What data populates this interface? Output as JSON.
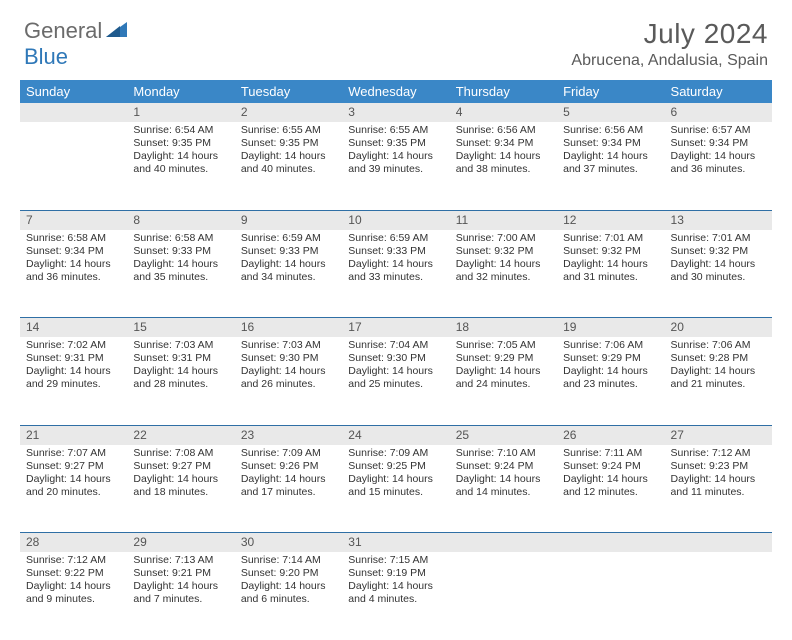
{
  "brand": {
    "general": "General",
    "blue": "Blue"
  },
  "title": "July 2024",
  "location": "Abrucena, Andalusia, Spain",
  "header_bg": "#3a87c7",
  "row_divider": "#2f6fa5",
  "daynum_bg": "#e9e9e9",
  "text_color": "#333333",
  "day_headers": [
    "Sunday",
    "Monday",
    "Tuesday",
    "Wednesday",
    "Thursday",
    "Friday",
    "Saturday"
  ],
  "weeks": [
    {
      "nums": [
        "",
        "1",
        "2",
        "3",
        "4",
        "5",
        "6"
      ],
      "cells": [
        null,
        {
          "sr": "Sunrise: 6:54 AM",
          "ss": "Sunset: 9:35 PM",
          "dl": "Daylight: 14 hours and 40 minutes."
        },
        {
          "sr": "Sunrise: 6:55 AM",
          "ss": "Sunset: 9:35 PM",
          "dl": "Daylight: 14 hours and 40 minutes."
        },
        {
          "sr": "Sunrise: 6:55 AM",
          "ss": "Sunset: 9:35 PM",
          "dl": "Daylight: 14 hours and 39 minutes."
        },
        {
          "sr": "Sunrise: 6:56 AM",
          "ss": "Sunset: 9:34 PM",
          "dl": "Daylight: 14 hours and 38 minutes."
        },
        {
          "sr": "Sunrise: 6:56 AM",
          "ss": "Sunset: 9:34 PM",
          "dl": "Daylight: 14 hours and 37 minutes."
        },
        {
          "sr": "Sunrise: 6:57 AM",
          "ss": "Sunset: 9:34 PM",
          "dl": "Daylight: 14 hours and 36 minutes."
        }
      ]
    },
    {
      "nums": [
        "7",
        "8",
        "9",
        "10",
        "11",
        "12",
        "13"
      ],
      "cells": [
        {
          "sr": "Sunrise: 6:58 AM",
          "ss": "Sunset: 9:34 PM",
          "dl": "Daylight: 14 hours and 36 minutes."
        },
        {
          "sr": "Sunrise: 6:58 AM",
          "ss": "Sunset: 9:33 PM",
          "dl": "Daylight: 14 hours and 35 minutes."
        },
        {
          "sr": "Sunrise: 6:59 AM",
          "ss": "Sunset: 9:33 PM",
          "dl": "Daylight: 14 hours and 34 minutes."
        },
        {
          "sr": "Sunrise: 6:59 AM",
          "ss": "Sunset: 9:33 PM",
          "dl": "Daylight: 14 hours and 33 minutes."
        },
        {
          "sr": "Sunrise: 7:00 AM",
          "ss": "Sunset: 9:32 PM",
          "dl": "Daylight: 14 hours and 32 minutes."
        },
        {
          "sr": "Sunrise: 7:01 AM",
          "ss": "Sunset: 9:32 PM",
          "dl": "Daylight: 14 hours and 31 minutes."
        },
        {
          "sr": "Sunrise: 7:01 AM",
          "ss": "Sunset: 9:32 PM",
          "dl": "Daylight: 14 hours and 30 minutes."
        }
      ]
    },
    {
      "nums": [
        "14",
        "15",
        "16",
        "17",
        "18",
        "19",
        "20"
      ],
      "cells": [
        {
          "sr": "Sunrise: 7:02 AM",
          "ss": "Sunset: 9:31 PM",
          "dl": "Daylight: 14 hours and 29 minutes."
        },
        {
          "sr": "Sunrise: 7:03 AM",
          "ss": "Sunset: 9:31 PM",
          "dl": "Daylight: 14 hours and 28 minutes."
        },
        {
          "sr": "Sunrise: 7:03 AM",
          "ss": "Sunset: 9:30 PM",
          "dl": "Daylight: 14 hours and 26 minutes."
        },
        {
          "sr": "Sunrise: 7:04 AM",
          "ss": "Sunset: 9:30 PM",
          "dl": "Daylight: 14 hours and 25 minutes."
        },
        {
          "sr": "Sunrise: 7:05 AM",
          "ss": "Sunset: 9:29 PM",
          "dl": "Daylight: 14 hours and 24 minutes."
        },
        {
          "sr": "Sunrise: 7:06 AM",
          "ss": "Sunset: 9:29 PM",
          "dl": "Daylight: 14 hours and 23 minutes."
        },
        {
          "sr": "Sunrise: 7:06 AM",
          "ss": "Sunset: 9:28 PM",
          "dl": "Daylight: 14 hours and 21 minutes."
        }
      ]
    },
    {
      "nums": [
        "21",
        "22",
        "23",
        "24",
        "25",
        "26",
        "27"
      ],
      "cells": [
        {
          "sr": "Sunrise: 7:07 AM",
          "ss": "Sunset: 9:27 PM",
          "dl": "Daylight: 14 hours and 20 minutes."
        },
        {
          "sr": "Sunrise: 7:08 AM",
          "ss": "Sunset: 9:27 PM",
          "dl": "Daylight: 14 hours and 18 minutes."
        },
        {
          "sr": "Sunrise: 7:09 AM",
          "ss": "Sunset: 9:26 PM",
          "dl": "Daylight: 14 hours and 17 minutes."
        },
        {
          "sr": "Sunrise: 7:09 AM",
          "ss": "Sunset: 9:25 PM",
          "dl": "Daylight: 14 hours and 15 minutes."
        },
        {
          "sr": "Sunrise: 7:10 AM",
          "ss": "Sunset: 9:24 PM",
          "dl": "Daylight: 14 hours and 14 minutes."
        },
        {
          "sr": "Sunrise: 7:11 AM",
          "ss": "Sunset: 9:24 PM",
          "dl": "Daylight: 14 hours and 12 minutes."
        },
        {
          "sr": "Sunrise: 7:12 AM",
          "ss": "Sunset: 9:23 PM",
          "dl": "Daylight: 14 hours and 11 minutes."
        }
      ]
    },
    {
      "nums": [
        "28",
        "29",
        "30",
        "31",
        "",
        "",
        ""
      ],
      "cells": [
        {
          "sr": "Sunrise: 7:12 AM",
          "ss": "Sunset: 9:22 PM",
          "dl": "Daylight: 14 hours and 9 minutes."
        },
        {
          "sr": "Sunrise: 7:13 AM",
          "ss": "Sunset: 9:21 PM",
          "dl": "Daylight: 14 hours and 7 minutes."
        },
        {
          "sr": "Sunrise: 7:14 AM",
          "ss": "Sunset: 9:20 PM",
          "dl": "Daylight: 14 hours and 6 minutes."
        },
        {
          "sr": "Sunrise: 7:15 AM",
          "ss": "Sunset: 9:19 PM",
          "dl": "Daylight: 14 hours and 4 minutes."
        },
        null,
        null,
        null
      ]
    }
  ]
}
